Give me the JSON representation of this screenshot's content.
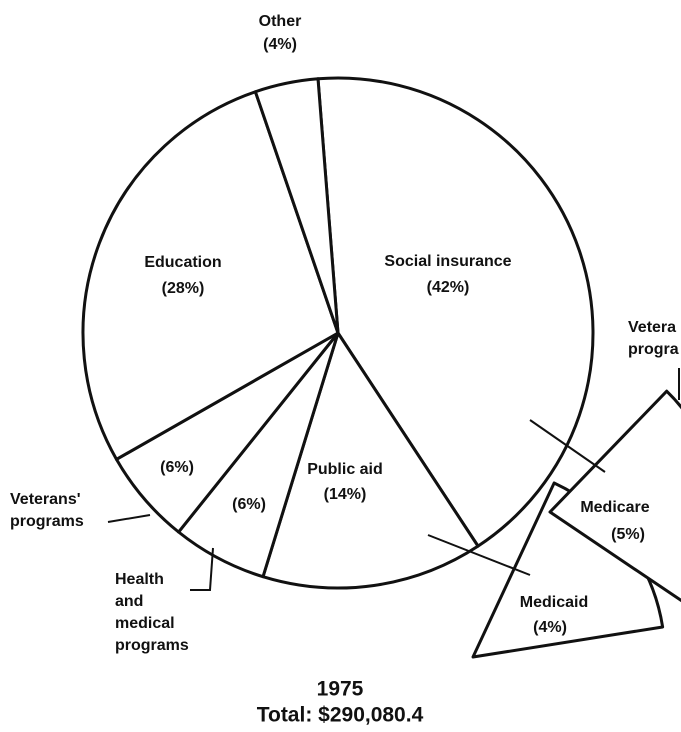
{
  "chart_data": {
    "type": "pie",
    "title": "1975",
    "subtitle": "Total: $290,080.4",
    "categories": [
      "Social insurance",
      "Public aid",
      "Health and medical programs",
      "Veterans' programs",
      "Education",
      "Other"
    ],
    "values": [
      42,
      14,
      6,
      6,
      28,
      4
    ],
    "value_labels": [
      "(42%)",
      "(14%)",
      "(6%)",
      "(6%)",
      "(28%)",
      "(4%)"
    ],
    "details": [
      {
        "name": "Medicare",
        "value": 5,
        "value_label": "(5%)"
      },
      {
        "name": "Medicaid",
        "value": 4,
        "value_label": "(4%)"
      }
    ],
    "annotation": [
      "Vetera",
      "progra"
    ],
    "color": "#ffffff"
  }
}
